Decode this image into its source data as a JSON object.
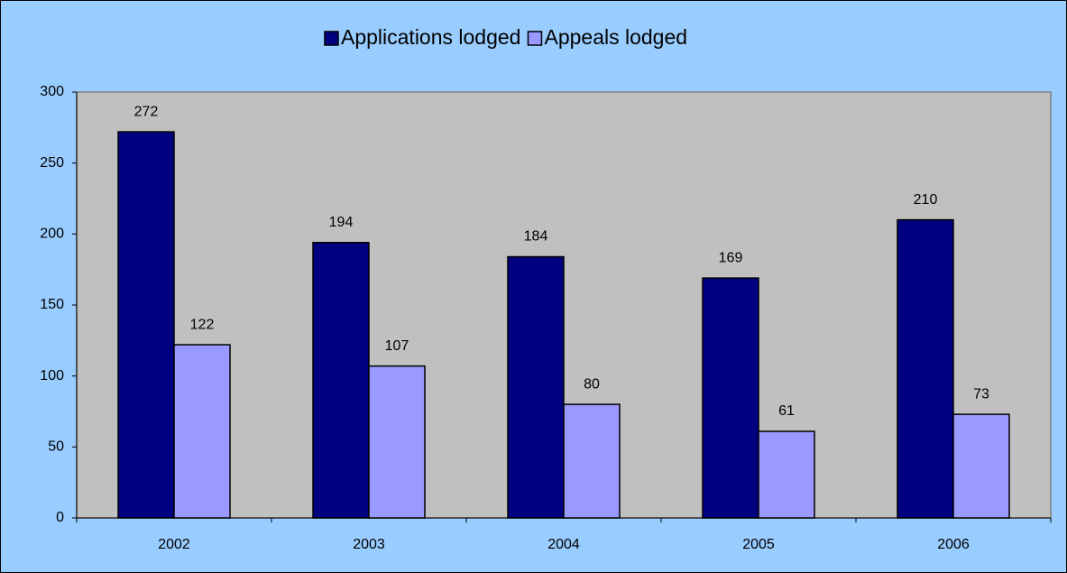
{
  "chart_data": {
    "type": "bar",
    "categories": [
      "2002",
      "2003",
      "2004",
      "2005",
      "2006"
    ],
    "series": [
      {
        "name": "Applications lodged",
        "color": "#000080",
        "values": [
          272,
          194,
          184,
          169,
          210
        ]
      },
      {
        "name": "Appeals lodged",
        "color": "#9999ff",
        "values": [
          122,
          107,
          80,
          61,
          73
        ]
      }
    ],
    "ylim": [
      0,
      300
    ],
    "yticks": [
      0,
      50,
      100,
      150,
      200,
      250,
      300
    ],
    "legend": "top",
    "grid": false
  }
}
